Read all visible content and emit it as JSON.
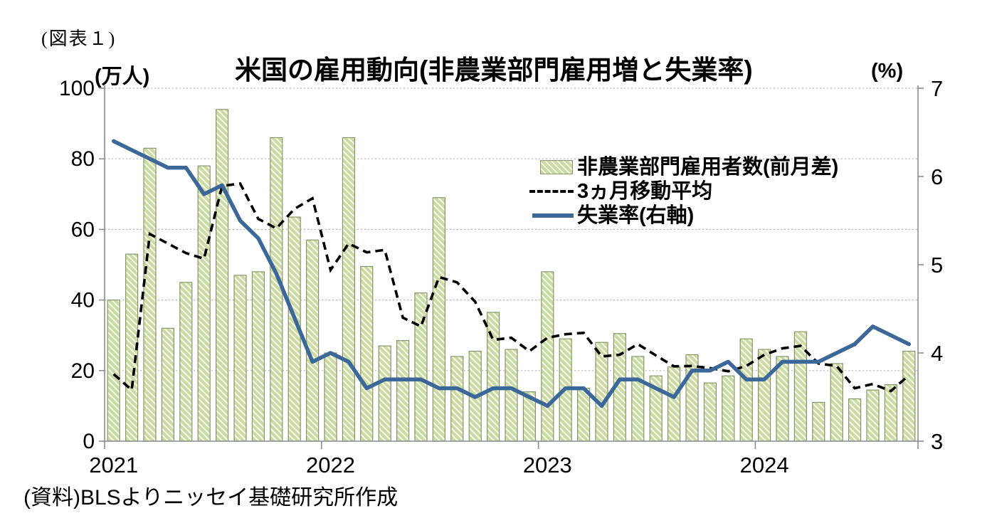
{
  "figure_label": "(図表１)",
  "header": {
    "title": "米国の雇用動向(非農業部門雇用増と失業率)",
    "left_axis_unit": "(万人)",
    "right_axis_unit": "(%)"
  },
  "source_note": "(資料)BLSよりニッセイ基礎研究所作成",
  "legend": {
    "payroll_label": "非農業部門雇用者数(前月差)",
    "moving_average_label": "3ヵ月移動平均",
    "unemployment_label": "失業率(右軸)"
  },
  "colors": {
    "bar_fill": "#cbd9a2",
    "bar_hatch_stripe": "#f3f6e8",
    "bar_border": "#87976a",
    "moving_average_line": "#000000",
    "unemployment_line": "#3b6898",
    "gridline": "#b7b7b7",
    "axis": "#8c8c8c"
  },
  "chart_data": {
    "type": "bar",
    "subtype": "combo bar + two lines, dual axis",
    "title": "米国の雇用動向(非農業部門雇用増と失業率)",
    "grid": "horizontal dotted, 20-unit steps",
    "legend_position": "inside upper-right",
    "categories": [
      "2021-01",
      "2021-02",
      "2021-03",
      "2021-04",
      "2021-05",
      "2021-06",
      "2021-07",
      "2021-08",
      "2021-09",
      "2021-10",
      "2021-11",
      "2021-12",
      "2022-01",
      "2022-02",
      "2022-03",
      "2022-04",
      "2022-05",
      "2022-06",
      "2022-07",
      "2022-08",
      "2022-09",
      "2022-10",
      "2022-11",
      "2022-12",
      "2023-01",
      "2023-02",
      "2023-03",
      "2023-04",
      "2023-05",
      "2023-06",
      "2023-07",
      "2023-08",
      "2023-09",
      "2023-10",
      "2023-11",
      "2023-12",
      "2024-01",
      "2024-02",
      "2024-03",
      "2024-04",
      "2024-05",
      "2024-06",
      "2024-07",
      "2024-08",
      "2024-09"
    ],
    "x_axis": {
      "year_tick_labels": [
        "2021",
        "2022",
        "2023",
        "2024"
      ],
      "months_per_year_group": 12
    },
    "left_axis": {
      "label": "(万人)",
      "min": 0,
      "max": 100,
      "ticks": [
        0,
        20,
        40,
        60,
        80,
        100
      ]
    },
    "right_axis": {
      "label": "(%)",
      "min": 3,
      "max": 7,
      "ticks": [
        3,
        4,
        5,
        6,
        7
      ]
    },
    "series": [
      {
        "name": "非農業部門雇用者数(前月差)",
        "type": "bar",
        "axis": "left",
        "values": [
          40,
          53,
          83,
          32,
          45,
          78,
          94,
          47,
          48,
          86,
          63.5,
          57,
          25,
          86,
          49.5,
          27,
          28.5,
          42,
          69,
          24,
          25.5,
          36.5,
          26,
          14,
          48,
          29,
          15,
          28,
          30.5,
          24,
          18.5,
          21,
          24.5,
          16.5,
          18.5,
          29,
          26,
          24,
          31,
          11,
          22,
          12,
          14.5,
          16,
          25.5
        ]
      },
      {
        "name": "3ヵ月移動平均",
        "type": "line",
        "style": "dashed",
        "axis": "left",
        "values": [
          19,
          14.5,
          58.7,
          56,
          53.3,
          51.7,
          72.3,
          73,
          63,
          60.3,
          65.8,
          68.8,
          48.5,
          56,
          53.5,
          54.2,
          35,
          32.5,
          46.5,
          45,
          39.5,
          28.7,
          29.3,
          25.5,
          29.3,
          30.3,
          30.7,
          24,
          24.5,
          27.5,
          24.3,
          21.2,
          21.3,
          20.7,
          19.8,
          21.3,
          24.5,
          26.3,
          27,
          22,
          21.3,
          15,
          16.2,
          14.2,
          18.7
        ]
      },
      {
        "name": "失業率(右軸)",
        "type": "line",
        "style": "solid",
        "axis": "right",
        "values": [
          6.4,
          6.3,
          6.2,
          6.1,
          6.1,
          5.8,
          5.9,
          5.5,
          5.3,
          4.9,
          4.4,
          3.9,
          4.0,
          3.9,
          3.6,
          3.7,
          3.7,
          3.7,
          3.6,
          3.6,
          3.5,
          3.6,
          3.6,
          3.5,
          3.4,
          3.6,
          3.6,
          3.4,
          3.7,
          3.7,
          3.6,
          3.5,
          3.8,
          3.8,
          3.9,
          3.7,
          3.7,
          3.9,
          3.9,
          3.9,
          4.0,
          4.1,
          4.3,
          4.2,
          4.1
        ]
      }
    ]
  }
}
